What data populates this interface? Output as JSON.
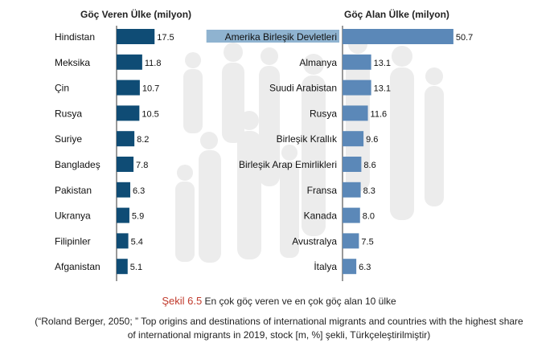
{
  "chart_data": [
    {
      "type": "bar",
      "orientation": "horizontal",
      "title": "Göç Veren Ülke (milyon)",
      "categories": [
        "Hindistan",
        "Meksika",
        "Çin",
        "Rusya",
        "Suriye",
        "Bangladeş",
        "Pakistan",
        "Ukranya",
        "Filipinler",
        "Afganistan"
      ],
      "values": [
        17.5,
        11.8,
        10.7,
        10.5,
        8.2,
        7.8,
        6.3,
        5.9,
        5.4,
        5.1
      ],
      "color": "#0f4c75"
    },
    {
      "type": "bar",
      "orientation": "horizontal",
      "title": "Göç Alan Ülke (milyon)",
      "categories": [
        "Amerika Birleşik Devletleri",
        "Almanya",
        "Suudi Arabistan",
        "Rusya",
        "Birleşik Krallık",
        "Birleşik Arap Emirlikleri",
        "Fransa",
        "Kanada",
        "Avustralya",
        "İtalya"
      ],
      "values": [
        50.7,
        13.1,
        13.1,
        11.6,
        9.6,
        8.6,
        8.3,
        8.0,
        7.5,
        6.3
      ],
      "color": "#5b88b8"
    }
  ],
  "caption": {
    "figure_label": "Şekil 6.5",
    "figure_text": "En çok göç veren ve en çok göç alan 10 ülke",
    "source_line1": "(“Roland Berger, 2050; ” Top origins and destinations of international migrants and countries with the highest share",
    "source_line2": "of international migrants in 2019, stock [m, %] şekli, Türkçeleştirilmiştir)"
  },
  "colors": {
    "silhouettes": "#ececec",
    "highlight_label_bg": "#8fb3d0"
  }
}
